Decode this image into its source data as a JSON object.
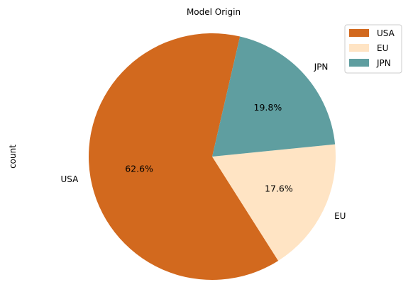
{
  "chart_data": {
    "type": "pie",
    "title": "Model Origin",
    "ylabel": "count",
    "categories": [
      "USA",
      "EU",
      "JPN"
    ],
    "values": [
      62.6,
      17.6,
      19.8
    ],
    "value_labels": [
      "62.6%",
      "17.6%",
      "19.8%"
    ],
    "colors": [
      "#D2691E",
      "#FFE4C4",
      "#5F9EA0"
    ],
    "legend": {
      "placement": "top-right",
      "entries": [
        "USA",
        "EU",
        "JPN"
      ]
    }
  }
}
